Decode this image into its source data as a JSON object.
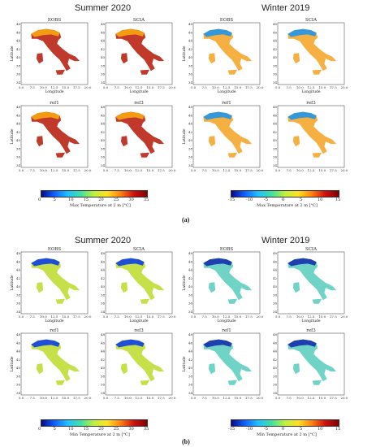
{
  "section_a": {
    "caption": "(a)",
    "summer_title": "Summer 2020",
    "winter_title": "Winter 2019",
    "summer_colorbar": {
      "ticks": [
        "0",
        "5",
        "10",
        "15",
        "20",
        "25",
        "30",
        "35"
      ],
      "label": "Max Temperature at 2 m [°C]"
    },
    "winter_colorbar": {
      "ticks": [
        "-15",
        "-10",
        "-5",
        "0",
        "5",
        "10",
        "15"
      ],
      "label": "Max Temperature at 2 m [°C]"
    }
  },
  "section_b": {
    "caption": "(b)",
    "summer_title": "Summer 2020",
    "winter_title": "Winter 2019",
    "summer_colorbar": {
      "ticks": [
        "0",
        "5",
        "10",
        "15",
        "20",
        "25",
        "30",
        "35"
      ],
      "label": "Min Temperature at 2 m [°C]"
    },
    "winter_colorbar": {
      "ticks": [
        "-15",
        "-10",
        "-5",
        "0",
        "5",
        "10",
        "15"
      ],
      "label": "Min Temperature at 2 m [°C]"
    }
  },
  "panel_titles": [
    "EOBS",
    "SCIA",
    "ref1",
    "ref3"
  ],
  "axes": {
    "xlabel": "Longitude",
    "ylabel": "Latitude",
    "xticks": [
      "5.0",
      "7.5",
      "10.0",
      "12.5",
      "15.0",
      "17.5",
      "20.0"
    ],
    "yticks": [
      "48",
      "46",
      "44",
      "42",
      "40",
      "38",
      "36",
      "34"
    ]
  },
  "palette": {
    "summer_max": "#c0392b",
    "summer_max_north": "#f39c12",
    "winter_max": "#f5b041",
    "winter_max_alps": "#3498db",
    "summer_min": "#c6e04a",
    "summer_min_alps": "#1f4fd6",
    "winter_min": "#6fd3c6",
    "winter_min_alps": "#1f3fb0"
  }
}
